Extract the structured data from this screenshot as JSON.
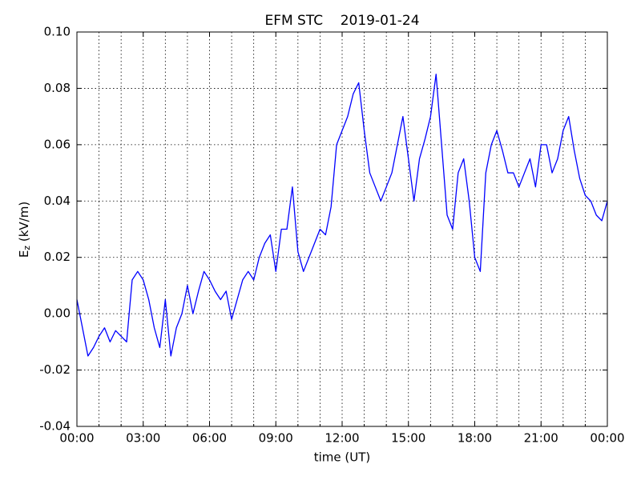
{
  "chart_data": {
    "type": "line",
    "title": "EFM STC    2019-01-24",
    "xlabel": "time (UT)",
    "ylabel": "E",
    "ylabel_subscript": "z",
    "ylabel_unit": " (kV/m)",
    "xlim": [
      0,
      24
    ],
    "ylim": [
      -0.04,
      0.1
    ],
    "xticks": [
      {
        "value": 0,
        "label": "00:00"
      },
      {
        "value": 3,
        "label": "03:00"
      },
      {
        "value": 6,
        "label": "06:00"
      },
      {
        "value": 9,
        "label": "09:00"
      },
      {
        "value": 12,
        "label": "12:00"
      },
      {
        "value": 15,
        "label": "15:00"
      },
      {
        "value": 18,
        "label": "18:00"
      },
      {
        "value": 21,
        "label": "21:00"
      },
      {
        "value": 24,
        "label": "00:00"
      }
    ],
    "xminorticks": [
      1,
      2,
      4,
      5,
      7,
      8,
      10,
      11,
      13,
      14,
      16,
      17,
      19,
      20,
      22,
      23
    ],
    "yticks": [
      -0.04,
      -0.02,
      {
        "value": 0,
        "label": "0.00"
      },
      0.02,
      0.04,
      0.06,
      0.08,
      {
        "value": 0.1,
        "label": "0.10"
      }
    ],
    "grid": true,
    "x": [
      0,
      0.25,
      0.5,
      0.75,
      1,
      1.25,
      1.5,
      1.75,
      2,
      2.25,
      2.5,
      2.75,
      3,
      3.25,
      3.5,
      3.75,
      4,
      4.25,
      4.5,
      4.75,
      5,
      5.25,
      5.5,
      5.75,
      6,
      6.25,
      6.5,
      6.75,
      7,
      7.25,
      7.5,
      7.75,
      8,
      8.25,
      8.5,
      8.75,
      9,
      9.25,
      9.5,
      9.75,
      10,
      10.25,
      10.5,
      10.75,
      11,
      11.25,
      11.5,
      11.75,
      12,
      12.25,
      12.5,
      12.75,
      13,
      13.25,
      13.5,
      13.75,
      14,
      14.25,
      14.5,
      14.75,
      15,
      15.25,
      15.5,
      15.75,
      16,
      16.25,
      16.5,
      16.75,
      17,
      17.25,
      17.5,
      17.75,
      18,
      18.25,
      18.5,
      18.75,
      19,
      19.25,
      19.5,
      19.75,
      20,
      20.25,
      20.5,
      20.75,
      21,
      21.25,
      21.5,
      21.75,
      22,
      22.25,
      22.5,
      22.75,
      23,
      23.25,
      23.5,
      23.75,
      24
    ],
    "series": [
      {
        "name": "Ez",
        "color": "#0000ff",
        "values": [
          0.005,
          -0.005,
          -0.015,
          -0.012,
          -0.008,
          -0.005,
          -0.01,
          -0.006,
          -0.008,
          -0.01,
          0.012,
          0.015,
          0.012,
          0.005,
          -0.005,
          -0.012,
          0.005,
          -0.015,
          -0.005,
          0.0,
          0.01,
          0.0,
          0.008,
          0.015,
          0.012,
          0.008,
          0.005,
          0.008,
          -0.002,
          0.005,
          0.012,
          0.015,
          0.012,
          0.02,
          0.025,
          0.028,
          0.015,
          0.03,
          0.03,
          0.045,
          0.022,
          0.015,
          0.02,
          0.025,
          0.03,
          0.028,
          0.038,
          0.06,
          0.065,
          0.07,
          0.078,
          0.082,
          0.065,
          0.05,
          0.045,
          0.04,
          0.045,
          0.05,
          0.06,
          0.07,
          0.055,
          0.04,
          0.055,
          0.062,
          0.07,
          0.085,
          0.06,
          0.035,
          0.03,
          0.05,
          0.055,
          0.04,
          0.02,
          0.015,
          0.05,
          0.06,
          0.065,
          0.058,
          0.05,
          0.05,
          0.045,
          0.05,
          0.055,
          0.045,
          0.06,
          0.06,
          0.05,
          0.055,
          0.065,
          0.07,
          0.058,
          0.048,
          0.042,
          0.04,
          0.035,
          0.033,
          0.04
        ]
      }
    ]
  }
}
